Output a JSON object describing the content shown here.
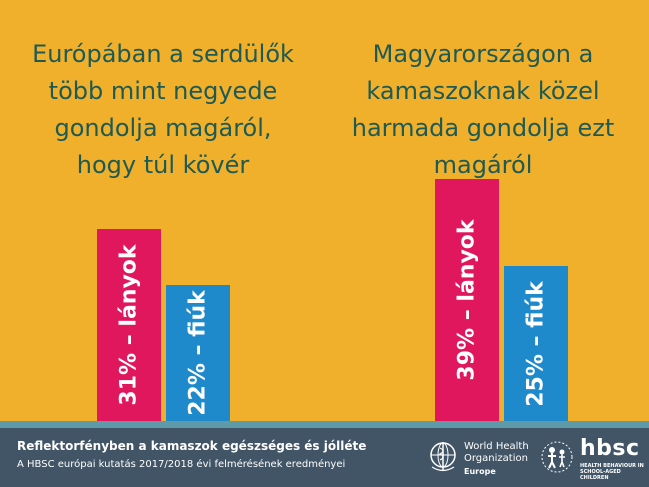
{
  "panels": [
    {
      "title_lines": [
        "Európában a serdülők",
        "több mint negyede",
        "gondolja magáról,",
        "hogy túl kövér"
      ]
    },
    {
      "title_lines": [
        "Magyarországon a",
        "kamaszoknak közel",
        "harmada gondolja ezt",
        "magáról"
      ]
    }
  ],
  "chart_data": [
    {
      "type": "bar",
      "categories": [
        "lányok",
        "fiúk"
      ],
      "values": [
        31,
        22
      ],
      "unit": "%",
      "labels": [
        "31% – lányok",
        "22% – fiúk"
      ],
      "colors": [
        "#E0175D",
        "#1E8ACB"
      ],
      "ylim": [
        0,
        100
      ]
    },
    {
      "type": "bar",
      "categories": [
        "lányok",
        "fiúk"
      ],
      "values": [
        39,
        25
      ],
      "unit": "%",
      "labels": [
        "39% – lányok",
        "25% – fiúk"
      ],
      "colors": [
        "#E0175D",
        "#1E8ACB"
      ],
      "ylim": [
        0,
        100
      ]
    }
  ],
  "colors": {
    "background": "#F1B02B",
    "title": "#1E5A54",
    "girls": "#E0175D",
    "boys": "#1E8ACB",
    "footer": "#415566",
    "baseline": "#5F9AA8"
  },
  "footer": {
    "line1": "Reflektorfényben a kamaszok egészséges és jólléte",
    "line2": "A HBSC európai kutatás  2017/2018  évi felmérésének eredményei"
  },
  "who_logo": {
    "name_lines": [
      "World Health",
      "Organization"
    ],
    "region": "Europe",
    "icon": "who-emblem-icon"
  },
  "hbsc_logo": {
    "name": "hbsc",
    "subtitle": "HEALTH BEHAVIOUR IN SCHOOL-AGED CHILDREN",
    "icon": "hbsc-figures-icon"
  }
}
